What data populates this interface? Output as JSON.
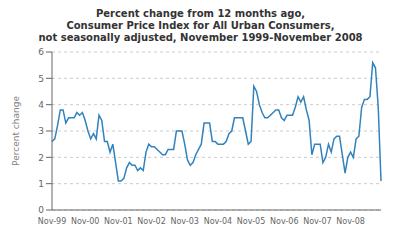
{
  "chart_data": {
    "type": "line",
    "title": "Percent change from 12 months ago,\nConsumer Price Index for All Urban Consumers,\nnot seasonally adjusted, November 1999-November 2008",
    "y_label": "Percent change",
    "categories": [
      "Nov-99",
      null,
      null,
      null,
      null,
      null,
      null,
      null,
      null,
      null,
      null,
      null,
      "Nov-00",
      null,
      null,
      null,
      null,
      null,
      null,
      null,
      null,
      null,
      null,
      null,
      "Nov-01",
      null,
      null,
      null,
      null,
      null,
      null,
      null,
      null,
      null,
      null,
      null,
      "Nov-02",
      null,
      null,
      null,
      null,
      null,
      null,
      null,
      null,
      null,
      null,
      null,
      "Nov-03",
      null,
      null,
      null,
      null,
      null,
      null,
      null,
      null,
      null,
      null,
      null,
      "Nov-04",
      null,
      null,
      null,
      null,
      null,
      null,
      null,
      null,
      null,
      null,
      null,
      "Nov-05",
      null,
      null,
      null,
      null,
      null,
      null,
      null,
      null,
      null,
      null,
      null,
      "Nov-06",
      null,
      null,
      null,
      null,
      null,
      null,
      null,
      null,
      null,
      null,
      null,
      "Nov-07",
      null,
      null,
      null,
      null,
      null,
      null,
      null,
      null,
      null,
      null,
      null,
      "Nov-08",
      null,
      null,
      null,
      null,
      null,
      null,
      null,
      null,
      null,
      null,
      null
    ],
    "values": [
      2.6,
      2.7,
      3.2,
      3.8,
      3.8,
      3.3,
      3.5,
      3.5,
      3.5,
      3.7,
      3.6,
      3.7,
      3.4,
      3.0,
      2.7,
      2.9,
      2.7,
      3.6,
      3.4,
      2.6,
      2.6,
      2.2,
      2.5,
      1.8,
      1.1,
      1.1,
      1.2,
      1.6,
      1.8,
      1.7,
      1.7,
      1.5,
      1.6,
      1.5,
      2.2,
      2.5,
      2.4,
      2.4,
      2.3,
      2.2,
      2.1,
      2.1,
      2.3,
      2.3,
      2.3,
      3.0,
      3.0,
      3.0,
      2.5,
      1.9,
      1.7,
      1.8,
      2.1,
      2.3,
      2.5,
      3.3,
      3.3,
      3.3,
      2.6,
      2.6,
      2.5,
      2.5,
      2.5,
      2.6,
      2.9,
      3.0,
      3.5,
      3.5,
      3.5,
      3.5,
      3.0,
      2.5,
      2.6,
      4.7,
      4.5,
      4.0,
      3.7,
      3.5,
      3.5,
      3.6,
      3.7,
      3.8,
      3.8,
      3.5,
      3.4,
      3.6,
      3.6,
      3.6,
      3.9,
      4.3,
      4.1,
      4.3,
      3.8,
      3.4,
      2.1,
      2.5,
      2.5,
      2.5,
      1.8,
      2.0,
      2.5,
      2.2,
      2.7,
      2.8,
      2.8,
      2.1,
      1.4,
      2.0,
      2.2,
      2.0,
      2.7,
      2.8,
      3.9,
      4.2,
      4.2,
      4.3,
      5.6,
      5.4,
      3.9,
      1.1
    ],
    "ylim": [
      0,
      6
    ],
    "yticks": [
      0,
      1,
      2,
      3,
      4,
      5,
      6
    ],
    "grid": true
  }
}
